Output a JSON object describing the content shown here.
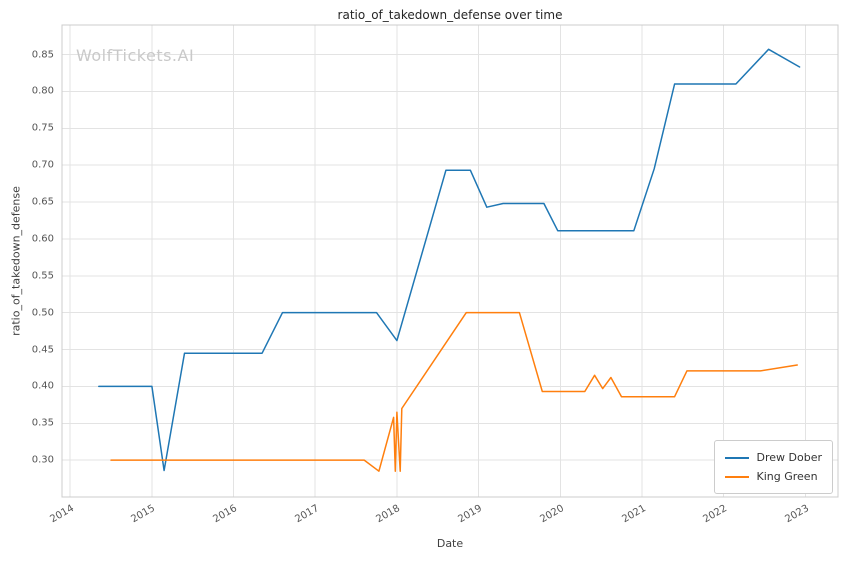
{
  "chart_data": {
    "type": "line",
    "title": "ratio_of_takedown_defense over time",
    "watermark": "WolfTickets.AI",
    "xlabel": "Date",
    "ylabel": "ratio_of_takedown_defense",
    "grid": true,
    "legend_position": "lower right",
    "legend_entries": [
      "Drew Dober",
      "King Green"
    ],
    "xlim": [
      2013.9,
      2023.4
    ],
    "ylim": [
      0.25,
      0.89
    ],
    "xticks": [
      2014,
      2015,
      2016,
      2017,
      2018,
      2019,
      2020,
      2021,
      2022,
      2023
    ],
    "xtick_labels": [
      "2014",
      "2015",
      "2016",
      "2017",
      "2018",
      "2019",
      "2020",
      "2021",
      "2022",
      "2023"
    ],
    "yticks": [
      0.3,
      0.35,
      0.4,
      0.45,
      0.5,
      0.55,
      0.6,
      0.65,
      0.7,
      0.75,
      0.8,
      0.85
    ],
    "ytick_labels": [
      "0.30",
      "0.35",
      "0.40",
      "0.45",
      "0.50",
      "0.55",
      "0.60",
      "0.65",
      "0.70",
      "0.75",
      "0.80",
      "0.85"
    ],
    "series": [
      {
        "name": "Drew Dober",
        "color": "#1f77b4",
        "points": [
          [
            2014.35,
            0.4
          ],
          [
            2015.0,
            0.4
          ],
          [
            2015.15,
            0.286
          ],
          [
            2015.4,
            0.445
          ],
          [
            2016.35,
            0.445
          ],
          [
            2016.6,
            0.5
          ],
          [
            2017.75,
            0.5
          ],
          [
            2018.0,
            0.462
          ],
          [
            2018.6,
            0.693
          ],
          [
            2018.9,
            0.693
          ],
          [
            2019.1,
            0.643
          ],
          [
            2019.3,
            0.648
          ],
          [
            2019.8,
            0.648
          ],
          [
            2019.97,
            0.611
          ],
          [
            2020.9,
            0.611
          ],
          [
            2021.15,
            0.695
          ],
          [
            2021.4,
            0.81
          ],
          [
            2022.15,
            0.81
          ],
          [
            2022.55,
            0.857
          ],
          [
            2022.93,
            0.833
          ]
        ]
      },
      {
        "name": "King Green",
        "color": "#ff7f0e",
        "points": [
          [
            2014.5,
            0.3
          ],
          [
            2017.6,
            0.3
          ],
          [
            2017.78,
            0.285
          ],
          [
            2017.96,
            0.358
          ],
          [
            2017.98,
            0.285
          ],
          [
            2018.0,
            0.365
          ],
          [
            2018.04,
            0.285
          ],
          [
            2018.06,
            0.37
          ],
          [
            2018.85,
            0.5
          ],
          [
            2019.5,
            0.5
          ],
          [
            2019.78,
            0.393
          ],
          [
            2020.3,
            0.393
          ],
          [
            2020.42,
            0.415
          ],
          [
            2020.52,
            0.397
          ],
          [
            2020.62,
            0.412
          ],
          [
            2020.75,
            0.386
          ],
          [
            2021.4,
            0.386
          ],
          [
            2021.55,
            0.421
          ],
          [
            2022.45,
            0.421
          ],
          [
            2022.9,
            0.429
          ]
        ]
      }
    ]
  }
}
